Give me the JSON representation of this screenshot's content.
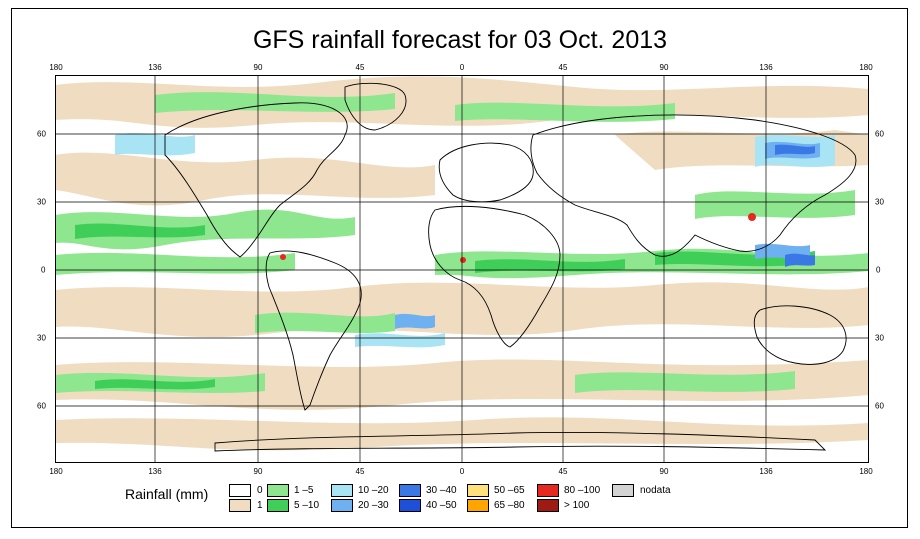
{
  "title": "GFS rainfall forecast for 03 Oct. 2013",
  "map": {
    "lon_ticks": [
      "180",
      "136",
      "90",
      "45",
      "0",
      "45",
      "90",
      "136",
      "180"
    ],
    "lat_ticks": [
      "60",
      "30",
      "0",
      "30",
      "60"
    ],
    "colors": {
      "ocean_dry": "#ffffff",
      "trace": "#f0dcc0",
      "light": "#8ee68e",
      "moderate": "#3fcf58",
      "heavy_light_blue": "#a8e4f4",
      "heavy_blue": "#6fb0f0",
      "very_heavy": "#3a78e6",
      "extreme_red": "#e6281e"
    }
  },
  "legend": {
    "title": "Rainfall (mm)",
    "items": [
      {
        "label": "0",
        "color": "#ffffff"
      },
      {
        "label": "1",
        "color": "#f0dcc0"
      },
      {
        "label": "1 –5",
        "color": "#8ee68e"
      },
      {
        "label": "5 –10",
        "color": "#3fcf58"
      },
      {
        "label": "10 –20",
        "color": "#a8e4f4"
      },
      {
        "label": "20 –30",
        "color": "#6fb0f0"
      },
      {
        "label": "30 –40",
        "color": "#3a78e6"
      },
      {
        "label": "40 –50",
        "color": "#1d4fd8"
      },
      {
        "label": "50 –65",
        "color": "#ffe07a"
      },
      {
        "label": "65 –80",
        "color": "#ffa500"
      },
      {
        "label": "80 –100",
        "color": "#e6281e"
      },
      {
        "label": "> 100",
        "color": "#a01a14"
      },
      {
        "label": "nodata",
        "color": "#d3d3d3"
      }
    ]
  }
}
